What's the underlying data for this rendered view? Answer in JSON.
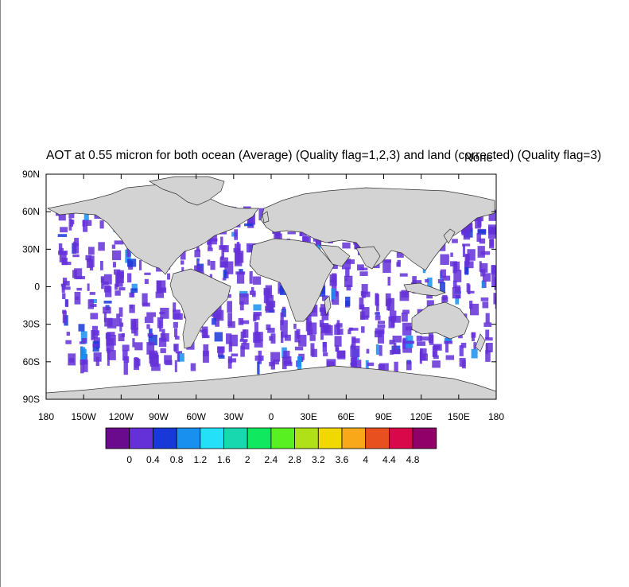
{
  "title": "AOT at 0.55 micron for both ocean (Average) (Quality flag=1,2,3) and land (corrected) (Quality flag=3)",
  "overlay_label": "None",
  "map": {
    "projection": "cylindrical equidistant",
    "land_color": "#d3d3d3",
    "ocean_color": "#ffffff",
    "lon_ticks": [
      "180",
      "150W",
      "120W",
      "90W",
      "60W",
      "30W",
      "0",
      "30E",
      "60E",
      "90E",
      "120E",
      "150E",
      "180"
    ],
    "lat_ticks": [
      "90N",
      "60N",
      "30N",
      "0",
      "30S",
      "60S",
      "90S"
    ]
  },
  "colorbar": {
    "colors": [
      "#6a0a8c",
      "#6430d8",
      "#1838d8",
      "#1890f0",
      "#24e0f8",
      "#18d8b0",
      "#10e860",
      "#58f020",
      "#b0e018",
      "#f0d800",
      "#f8a818",
      "#e85020",
      "#d8084a",
      "#900068"
    ],
    "labels": [
      "0",
      "0.4",
      "0.8",
      "1.2",
      "1.6",
      "2",
      "2.4",
      "2.8",
      "3.2",
      "3.6",
      "4",
      "4.4",
      "4.8"
    ]
  }
}
